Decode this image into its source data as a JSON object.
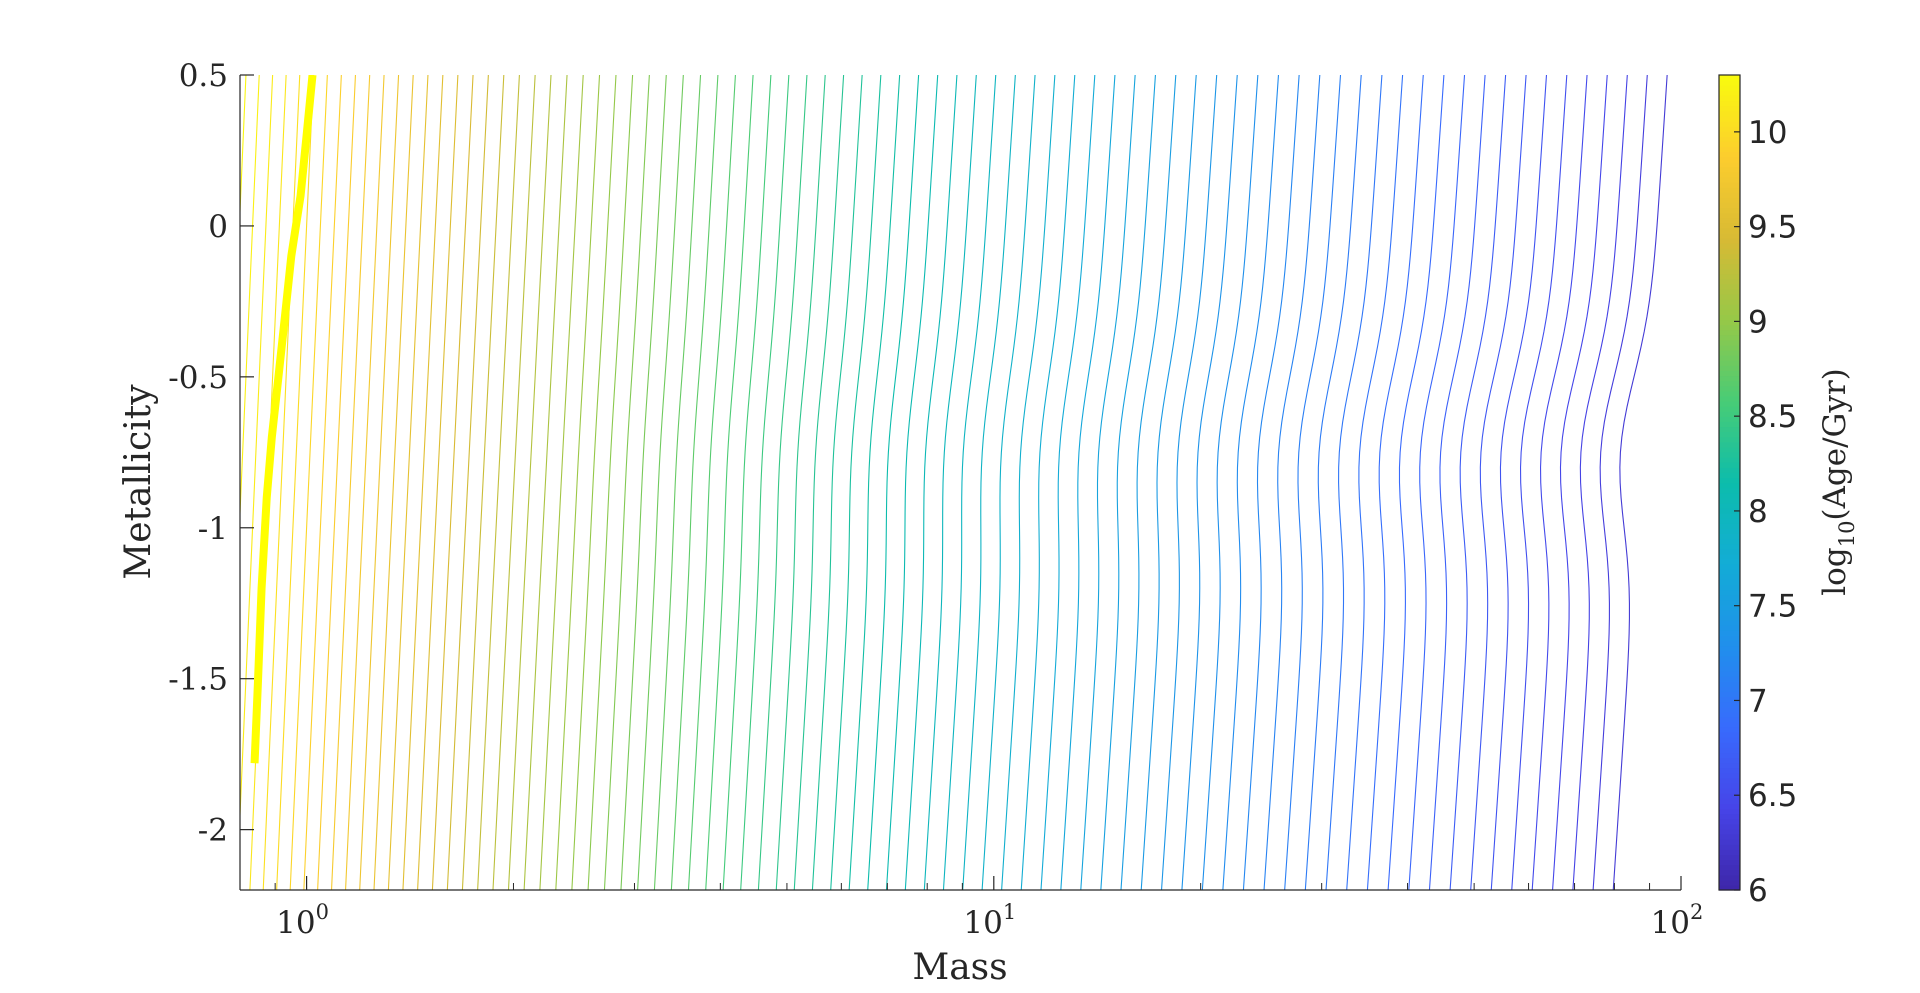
{
  "chart_data": {
    "type": "contour",
    "xlabel": "Mass",
    "ylabel": "Metallicity",
    "x_scale": "log",
    "xlim": [
      0.8,
      100
    ],
    "ylim": [
      -2.2,
      0.5
    ],
    "x_ticks": [
      {
        "value": 1,
        "base": "10",
        "exp": "0"
      },
      {
        "value": 10,
        "base": "10",
        "exp": "1"
      },
      {
        "value": 100,
        "base": "10",
        "exp": "2"
      }
    ],
    "y_ticks": [
      {
        "value": 0.5,
        "label": "0.5"
      },
      {
        "value": 0,
        "label": "0"
      },
      {
        "value": -0.5,
        "label": "-0.5"
      },
      {
        "value": -1,
        "label": "-1"
      },
      {
        "value": -1.5,
        "label": "-1.5"
      },
      {
        "value": -2,
        "label": "-2"
      }
    ],
    "colorbar": {
      "label_prefix": "log",
      "label_sub": "10",
      "label_suffix": "(Age/Gyr)",
      "colormap": "parula",
      "clim": [
        6,
        10.3
      ],
      "ticks": [
        {
          "value": 6,
          "label": "6"
        },
        {
          "value": 6.5,
          "label": "6.5"
        },
        {
          "value": 7,
          "label": "7"
        },
        {
          "value": 7.5,
          "label": "7.5"
        },
        {
          "value": 8,
          "label": "8"
        },
        {
          "value": 8.5,
          "label": "8.5"
        },
        {
          "value": 9,
          "label": "9"
        },
        {
          "value": 9.5,
          "label": "9.5"
        },
        {
          "value": 10,
          "label": "10"
        }
      ]
    },
    "contour_levels": {
      "min": 6.3,
      "max": 10.25,
      "step": 0.05
    },
    "boundary_line": {
      "color": "#ffff00",
      "metallicity": [
        0.5,
        0.3,
        0.1,
        -0.1,
        -0.3,
        -0.5,
        -0.7,
        -0.9,
        -1.2,
        -1.5,
        -1.78
      ],
      "mass": [
        1.02,
        1.0,
        0.98,
        0.95,
        0.93,
        0.91,
        0.89,
        0.875,
        0.86,
        0.85,
        0.84
      ]
    }
  }
}
